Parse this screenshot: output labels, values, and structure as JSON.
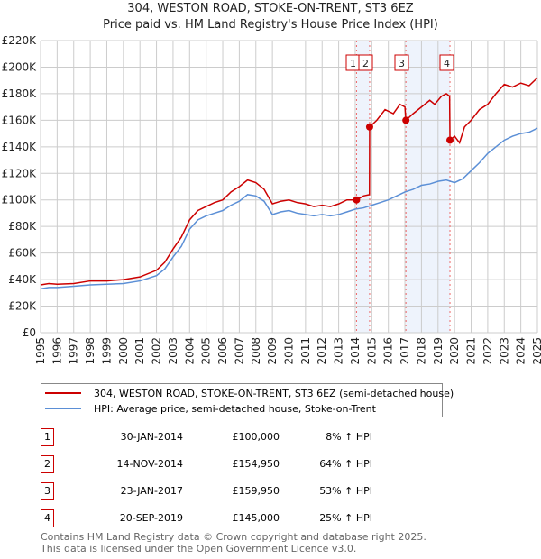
{
  "chart_data": {
    "type": "line",
    "title": "304, WESTON ROAD, STOKE-ON-TRENT, ST3 6EZ",
    "subtitle": "Price paid vs. HM Land Registry's House Price Index (HPI)",
    "xlim": [
      1995,
      2025
    ],
    "ylim": [
      0,
      220000
    ],
    "y_ticks": [
      "£0",
      "£20K",
      "£40K",
      "£60K",
      "£80K",
      "£100K",
      "£120K",
      "£140K",
      "£160K",
      "£180K",
      "£200K",
      "£220K"
    ],
    "x_ticks": [
      "1995",
      "1996",
      "1997",
      "1998",
      "1999",
      "2000",
      "2001",
      "2002",
      "2003",
      "2004",
      "2005",
      "2006",
      "2007",
      "2008",
      "2009",
      "2010",
      "2011",
      "2012",
      "2013",
      "2014",
      "2015",
      "2016",
      "2017",
      "2018",
      "2019",
      "2020",
      "2021",
      "2022",
      "2023",
      "2024",
      "2025"
    ],
    "grid": true,
    "series": [
      {
        "name": "304, WESTON ROAD, STOKE-ON-TRENT, ST3 6EZ (semi-detached house)",
        "color": "#cc0000",
        "x": [
          1995,
          1995.5,
          1996,
          1997,
          1998,
          1999,
          2000,
          2001,
          2002,
          2002.5,
          2003,
          2003.5,
          2004,
          2004.5,
          2005,
          2005.5,
          2006,
          2006.5,
          2007,
          2007.5,
          2008,
          2008.5,
          2009,
          2009.5,
          2010,
          2010.5,
          2011,
          2011.5,
          2012,
          2012.5,
          2013,
          2013.5,
          2014.08,
          2014.5,
          2014.86,
          2014.87,
          2015.3,
          2015.8,
          2016.3,
          2016.7,
          2017.0,
          2017.06,
          2017.5,
          2018,
          2018.5,
          2018.8,
          2019.2,
          2019.5,
          2019.7,
          2019.72,
          2020,
          2020.3,
          2020.6,
          2021,
          2021.5,
          2022,
          2022.5,
          2023,
          2023.5,
          2024,
          2024.5,
          2025
        ],
        "y": [
          36000,
          37000,
          36500,
          37000,
          39000,
          39000,
          40000,
          42000,
          47000,
          53000,
          63000,
          72000,
          85000,
          92000,
          95000,
          98000,
          100000,
          106000,
          110000,
          115000,
          113000,
          108000,
          97000,
          99000,
          100000,
          98000,
          97000,
          95000,
          96000,
          95000,
          97000,
          100000,
          100000,
          103000,
          104000,
          154950,
          160000,
          168000,
          165000,
          172000,
          170000,
          159950,
          165000,
          170000,
          175000,
          172000,
          178000,
          180000,
          178000,
          145000,
          148000,
          143000,
          155000,
          160000,
          168000,
          172000,
          180000,
          187000,
          185000,
          188000,
          186000,
          192000
        ]
      },
      {
        "name": "HPI: Average price, semi-detached house, Stoke-on-Trent",
        "color": "#5b8fd6",
        "x": [
          1995,
          1995.5,
          1996,
          1997,
          1998,
          1999,
          2000,
          2001,
          2002,
          2002.5,
          2003,
          2003.5,
          2004,
          2004.5,
          2005,
          2005.5,
          2006,
          2006.5,
          2007,
          2007.5,
          2008,
          2008.5,
          2009,
          2009.5,
          2010,
          2010.5,
          2011,
          2011.5,
          2012,
          2012.5,
          2013,
          2013.5,
          2014,
          2014.5,
          2015,
          2015.5,
          2016,
          2016.5,
          2017,
          2017.5,
          2018,
          2018.5,
          2019,
          2019.5,
          2020,
          2020.5,
          2021,
          2021.5,
          2022,
          2022.5,
          2023,
          2023.5,
          2024,
          2024.5,
          2025
        ],
        "y": [
          33000,
          34000,
          34000,
          35000,
          36000,
          36500,
          37000,
          39000,
          43000,
          48000,
          57000,
          65000,
          78000,
          85000,
          88000,
          90000,
          92000,
          96000,
          99000,
          104000,
          103000,
          99000,
          89000,
          91000,
          92000,
          90000,
          89000,
          88000,
          89000,
          88000,
          89000,
          91000,
          93000,
          94000,
          96000,
          98000,
          100000,
          103000,
          106000,
          108000,
          111000,
          112000,
          114000,
          115000,
          113000,
          116000,
          122000,
          128000,
          135000,
          140000,
          145000,
          148000,
          150000,
          151000,
          154000
        ]
      }
    ],
    "sales": [
      {
        "num": "1",
        "x": 2014.08,
        "y": 100000,
        "date": "30-JAN-2014",
        "price": "£100,000",
        "hpi": "8% ↑ HPI"
      },
      {
        "num": "2",
        "x": 2014.87,
        "y": 154950,
        "date": "14-NOV-2014",
        "price": "£154,950",
        "hpi": "64% ↑ HPI"
      },
      {
        "num": "3",
        "x": 2017.06,
        "y": 159950,
        "date": "23-JAN-2017",
        "price": "£159,950",
        "hpi": "53% ↑ HPI"
      },
      {
        "num": "4",
        "x": 2019.72,
        "y": 145000,
        "date": "20-SEP-2019",
        "price": "£145,000",
        "hpi": "25% ↑ HPI"
      }
    ]
  },
  "footer": {
    "line1": "Contains HM Land Registry data © Crown copyright and database right 2025.",
    "line2": "This data is licensed under the Open Government Licence v3.0."
  }
}
